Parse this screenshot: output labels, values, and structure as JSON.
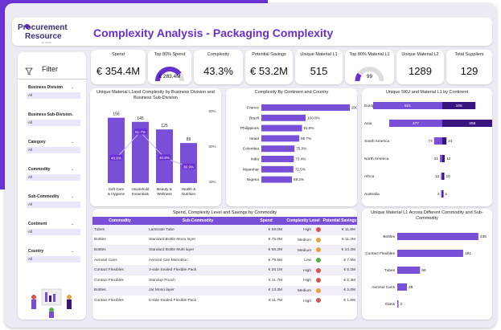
{
  "colors": {
    "accent": "#6a2fd0",
    "bar": "#7a4fd8",
    "bar_dark": "#3a1580",
    "low": "#55b24a",
    "medium": "#e8a13c",
    "high": "#d9534f"
  },
  "header": {
    "logo_line1": "Procurement",
    "logo_line2": "Resource",
    "logo_sub": "by Infiniti",
    "title": "Complexity Analysis - Packaging Complexity"
  },
  "kpis": [
    {
      "label": "Spend",
      "value": "€ 354.4M"
    },
    {
      "label": "Top 80% Spend",
      "value": "€ 283.4M",
      "gauge": 0.8
    },
    {
      "label": "Complexity",
      "value": "43.3%"
    },
    {
      "label": "Potential Savings",
      "value": "€ 53.2M"
    },
    {
      "label": "Unique Material L1",
      "value": "515"
    },
    {
      "label": "Top 80% Material L1",
      "value": "99",
      "gauge": 0.19
    },
    {
      "label": "Unique Material L2",
      "value": "1289"
    },
    {
      "label": "Total Suppliers",
      "value": "129"
    }
  ],
  "filters": {
    "title": "Filter",
    "filter_icon": "funnel-icon",
    "items": [
      {
        "label": "Business Division",
        "value": "All"
      },
      {
        "label": "Business Sub-Division",
        "value": "All"
      },
      {
        "label": "Category",
        "value": "All"
      },
      {
        "label": "Commodity",
        "value": "All"
      },
      {
        "label": "Sub-Commodity",
        "value": "All"
      },
      {
        "label": "Continent",
        "value": "All"
      },
      {
        "label": "Country",
        "value": "All"
      }
    ]
  },
  "chart_data": [
    {
      "type": "bar",
      "title": "Unique Material L1and Complexity by Business Division and Business Sub-Division",
      "categories": [
        "Soft Care & Hygiene",
        "Household Essentials",
        "Beauty & Wellness",
        "Health & Nutrition"
      ],
      "series": [
        {
          "values": [
            156,
            145,
            125,
            89
          ]
        },
        {
          "values": [
            40.6,
            51.7,
            40.8,
            36.9
          ]
        }
      ],
      "y2_ticks": [
        "60%",
        "50%",
        "40%"
      ],
      "ylim": [
        0,
        170
      ]
    },
    {
      "type": "bar",
      "title": "Complexity By Continent and Country",
      "categories": [
        "France",
        "Brazil",
        "Philippines",
        "Israel",
        "Colombia",
        "India",
        "Myanmar",
        "Nigeria"
      ],
      "values": [
        200.0,
        100.0,
        91.9,
        85.7,
        75.0,
        73.4,
        72.5,
        69.2
      ],
      "labels": [
        "200.0%",
        "100.0%",
        "91.9%",
        "85.7%",
        "75.0%",
        "73.4%",
        "72.5%",
        "69.2%"
      ],
      "xlim": [
        0,
        200
      ]
    },
    {
      "type": "bar",
      "title": "Unique SKU and Material L1 by Continent",
      "categories": [
        "Europe",
        "Asia",
        "South America",
        "North America",
        "Africa",
        "Australia"
      ],
      "series": [
        {
          "values": [
            621,
            477,
            74,
            21,
            12,
            3
          ]
        },
        {
          "values": [
            165,
            298,
            21,
            12,
            10,
            1
          ]
        }
      ],
      "xlim": [
        0,
        650
      ]
    },
    {
      "type": "table",
      "title": "Spend, Complexity Level and Savings by Commodity",
      "columns": [
        "Commodity",
        "Sub-Commodity",
        "Spend",
        "Complexity Level",
        "Potential Savings"
      ],
      "rows": [
        [
          "Tubes",
          "Laminate Tube",
          "€ 59.0M",
          "High",
          "€ 11.8M"
        ],
        [
          "Bottles",
          "Standard Bottle Mono layer",
          "€ 75.0M",
          "Medium",
          "€ 11.2M"
        ],
        [
          "Bottles",
          "Standard Bottle Multi layer",
          "€ 68.2M",
          "Medium",
          "€ 10.2M"
        ],
        [
          "Aerosol Cans",
          "Aerosol Can Monobloc",
          "€ 79.6M",
          "Low",
          "€ 7.9M"
        ],
        [
          "Contact Flexibles",
          "3-side Sealed Flexible Pack",
          "€ 26.1M",
          "High",
          "€ 5.2M"
        ],
        [
          "Contact Flexibles",
          "Standup Pouch",
          "€ 11.7M",
          "High",
          "€ 2.3M"
        ],
        [
          "Bottles",
          "Jar Mono layer",
          "€ 13.3M",
          "Medium",
          "€ 2.0M"
        ],
        [
          "Contact Flexibles",
          "4-side Sealed Flexible Pack",
          "€ 11.7M",
          "High",
          "€ 1.6M"
        ]
      ]
    },
    {
      "type": "bar",
      "title": "Unique Material L1 Across Different Commodity and Sub-Commodity",
      "categories": [
        "Bottles",
        "Contact Flexibles",
        "Tubes",
        "Aerosol Cans",
        "Glass"
      ],
      "values": [
        235,
        191,
        66,
        28,
        2
      ],
      "xlim": [
        0,
        240
      ]
    }
  ]
}
